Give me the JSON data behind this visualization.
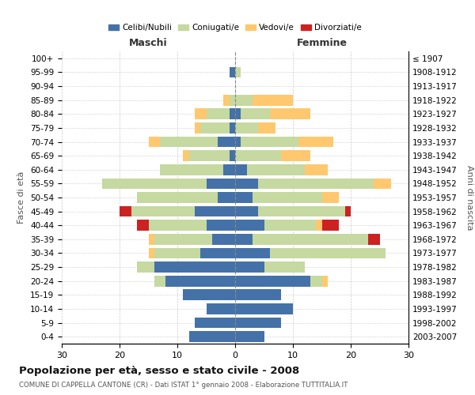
{
  "age_groups": [
    "0-4",
    "5-9",
    "10-14",
    "15-19",
    "20-24",
    "25-29",
    "30-34",
    "35-39",
    "40-44",
    "45-49",
    "50-54",
    "55-59",
    "60-64",
    "65-69",
    "70-74",
    "75-79",
    "80-84",
    "85-89",
    "90-94",
    "95-99",
    "100+"
  ],
  "birth_years": [
    "2003-2007",
    "1998-2002",
    "1993-1997",
    "1988-1992",
    "1983-1987",
    "1978-1982",
    "1973-1977",
    "1968-1972",
    "1963-1967",
    "1958-1962",
    "1953-1957",
    "1948-1952",
    "1943-1947",
    "1938-1942",
    "1933-1937",
    "1928-1932",
    "1923-1927",
    "1918-1922",
    "1913-1917",
    "1908-1912",
    "≤ 1907"
  ],
  "male": {
    "celibi": [
      8,
      7,
      5,
      9,
      12,
      14,
      6,
      4,
      5,
      7,
      3,
      5,
      2,
      1,
      3,
      1,
      1,
      0,
      0,
      1,
      0
    ],
    "coniugati": [
      0,
      0,
      0,
      0,
      2,
      3,
      8,
      10,
      10,
      11,
      14,
      18,
      11,
      7,
      10,
      5,
      4,
      1,
      0,
      0,
      0
    ],
    "vedovi": [
      0,
      0,
      0,
      0,
      0,
      0,
      1,
      1,
      0,
      0,
      0,
      0,
      0,
      1,
      2,
      1,
      2,
      1,
      0,
      0,
      0
    ],
    "divorziati": [
      0,
      0,
      0,
      0,
      0,
      0,
      0,
      0,
      2,
      2,
      0,
      0,
      0,
      0,
      0,
      0,
      0,
      0,
      0,
      0,
      0
    ]
  },
  "female": {
    "nubili": [
      5,
      8,
      10,
      8,
      13,
      5,
      6,
      3,
      5,
      4,
      3,
      4,
      2,
      0,
      1,
      0,
      1,
      0,
      0,
      0,
      0
    ],
    "coniugate": [
      0,
      0,
      0,
      0,
      2,
      7,
      20,
      20,
      9,
      15,
      12,
      20,
      10,
      8,
      10,
      4,
      5,
      3,
      0,
      1,
      0
    ],
    "vedove": [
      0,
      0,
      0,
      0,
      1,
      0,
      0,
      0,
      1,
      0,
      3,
      3,
      4,
      5,
      6,
      3,
      7,
      7,
      0,
      0,
      0
    ],
    "divorziate": [
      0,
      0,
      0,
      0,
      0,
      0,
      0,
      2,
      3,
      1,
      0,
      0,
      0,
      0,
      0,
      0,
      0,
      0,
      0,
      0,
      0
    ]
  },
  "colors": {
    "celibi_nubili": "#4472a8",
    "coniugati": "#c5d9a0",
    "vedovi": "#ffc86e",
    "divorziati": "#cc2222"
  },
  "xlim": 30,
  "title": "Popolazione per età, sesso e stato civile - 2008",
  "subtitle": "COMUNE DI CAPPELLA CANTONE (CR) - Dati ISTAT 1° gennaio 2008 - Elaborazione TUTTITALIA.IT",
  "ylabel_left": "Fasce di età",
  "ylabel_right": "Anni di nascita",
  "xlabel_male": "Maschi",
  "xlabel_female": "Femmine",
  "bg_color": "#ffffff",
  "grid_color": "#cccccc"
}
